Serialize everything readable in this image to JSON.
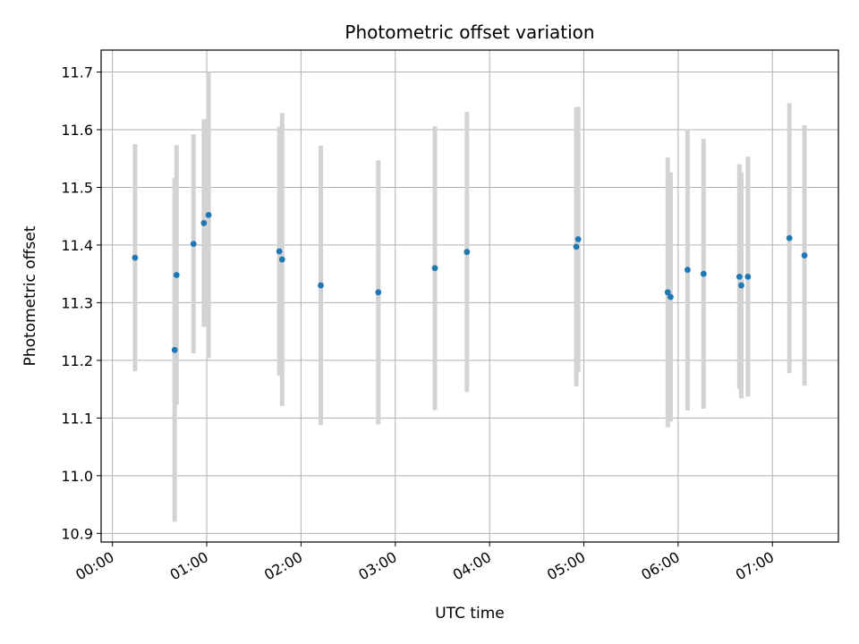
{
  "chart_data": {
    "type": "scatter",
    "title": "Photometric offset variation",
    "xlabel": "UTC time",
    "ylabel": "Photometric offset",
    "x_unit": "hours",
    "xlim": [
      -0.12,
      7.7
    ],
    "ylim": [
      10.885,
      11.738
    ],
    "x_ticks": [
      {
        "value": 0,
        "label": "00:00"
      },
      {
        "value": 1,
        "label": "01:00"
      },
      {
        "value": 2,
        "label": "02:00"
      },
      {
        "value": 3,
        "label": "03:00"
      },
      {
        "value": 4,
        "label": "04:00"
      },
      {
        "value": 5,
        "label": "05:00"
      },
      {
        "value": 6,
        "label": "06:00"
      },
      {
        "value": 7,
        "label": "07:00"
      }
    ],
    "y_ticks": [
      {
        "value": 10.9,
        "label": "10.9"
      },
      {
        "value": 11.0,
        "label": "11.0"
      },
      {
        "value": 11.1,
        "label": "11.1"
      },
      {
        "value": 11.2,
        "label": "11.2"
      },
      {
        "value": 11.3,
        "label": "11.3"
      },
      {
        "value": 11.4,
        "label": "11.4"
      },
      {
        "value": 11.5,
        "label": "11.5"
      },
      {
        "value": 11.6,
        "label": "11.6"
      },
      {
        "value": 11.7,
        "label": "11.7"
      }
    ],
    "grid": true,
    "marker_color": "#1f77b4",
    "errorbar_color": "#d3d3d3",
    "points": [
      {
        "x": 0.24,
        "y": 11.378,
        "err": 0.197
      },
      {
        "x": 0.66,
        "y": 11.218,
        "err": 0.298
      },
      {
        "x": 0.68,
        "y": 11.348,
        "err": 0.225
      },
      {
        "x": 0.86,
        "y": 11.402,
        "err": 0.19
      },
      {
        "x": 0.97,
        "y": 11.438,
        "err": 0.18
      },
      {
        "x": 1.02,
        "y": 11.452,
        "err": 0.248
      },
      {
        "x": 1.77,
        "y": 11.389,
        "err": 0.216
      },
      {
        "x": 1.8,
        "y": 11.375,
        "err": 0.254
      },
      {
        "x": 2.21,
        "y": 11.33,
        "err": 0.242
      },
      {
        "x": 2.82,
        "y": 11.318,
        "err": 0.229
      },
      {
        "x": 3.42,
        "y": 11.36,
        "err": 0.246
      },
      {
        "x": 3.76,
        "y": 11.388,
        "err": 0.243
      },
      {
        "x": 4.92,
        "y": 11.397,
        "err": 0.242
      },
      {
        "x": 4.94,
        "y": 11.41,
        "err": 0.23
      },
      {
        "x": 5.89,
        "y": 11.318,
        "err": 0.234
      },
      {
        "x": 5.92,
        "y": 11.31,
        "err": 0.216
      },
      {
        "x": 6.1,
        "y": 11.357,
        "err": 0.244
      },
      {
        "x": 6.27,
        "y": 11.35,
        "err": 0.234
      },
      {
        "x": 6.65,
        "y": 11.345,
        "err": 0.195
      },
      {
        "x": 6.67,
        "y": 11.33,
        "err": 0.196
      },
      {
        "x": 6.74,
        "y": 11.345,
        "err": 0.208
      },
      {
        "x": 7.18,
        "y": 11.412,
        "err": 0.234
      },
      {
        "x": 7.34,
        "y": 11.382,
        "err": 0.226
      }
    ]
  }
}
